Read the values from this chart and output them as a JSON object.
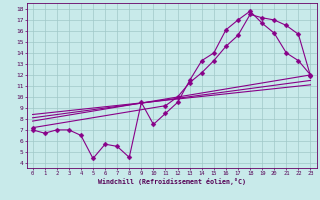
{
  "xlabel": "Windchill (Refroidissement éolien,°C)",
  "bg_color": "#c8eaea",
  "grid_color": "#a0c8c8",
  "line_color": "#880088",
  "markersize": 2.5,
  "linewidth": 0.8,
  "xlim": [
    -0.5,
    23.5
  ],
  "ylim": [
    3.5,
    18.5
  ],
  "xticks": [
    0,
    1,
    2,
    3,
    4,
    5,
    6,
    7,
    8,
    9,
    10,
    11,
    12,
    13,
    14,
    15,
    16,
    17,
    18,
    19,
    20,
    21,
    22,
    23
  ],
  "yticks": [
    4,
    5,
    6,
    7,
    8,
    9,
    10,
    11,
    12,
    13,
    14,
    15,
    16,
    17,
    18
  ],
  "line1_x": [
    0,
    1,
    2,
    3,
    4,
    5,
    6,
    7,
    8,
    9,
    10,
    11,
    12,
    13,
    14,
    15,
    16,
    17,
    18,
    19,
    20,
    21,
    22,
    23
  ],
  "line1_y": [
    7.0,
    6.7,
    7.0,
    7.0,
    6.5,
    4.4,
    5.7,
    5.5,
    4.5,
    9.5,
    7.5,
    8.5,
    9.5,
    11.5,
    13.3,
    14.0,
    16.1,
    17.0,
    17.8,
    16.7,
    15.8,
    14.0,
    13.3,
    12.0
  ],
  "line2_x": [
    0,
    11,
    12,
    13,
    14,
    15,
    16,
    17,
    18,
    19,
    20,
    21,
    22,
    23
  ],
  "line2_y": [
    7.2,
    9.2,
    10.0,
    11.3,
    12.2,
    13.3,
    14.6,
    15.6,
    17.5,
    17.2,
    17.0,
    16.5,
    15.7,
    11.9
  ],
  "line3_x": [
    0,
    23
  ],
  "line3_y": [
    7.8,
    12.0
  ],
  "line4_x": [
    0,
    23
  ],
  "line4_y": [
    8.1,
    11.5
  ],
  "line5_x": [
    0,
    23
  ],
  "line5_y": [
    8.4,
    11.1
  ]
}
